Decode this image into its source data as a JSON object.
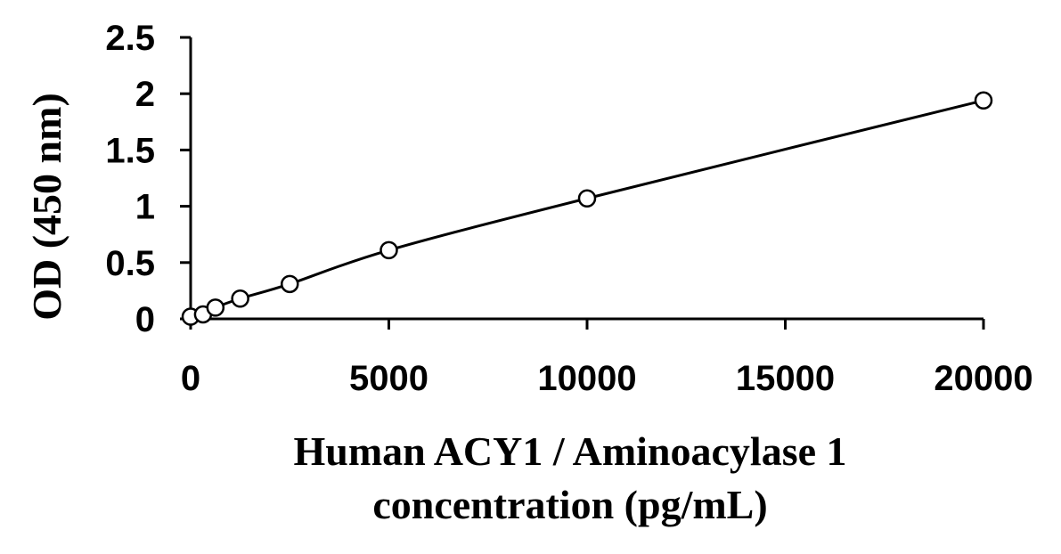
{
  "chart_data": {
    "type": "scatter",
    "title": "",
    "xlabel_lines": [
      "Human ACY1 / Aminoacylase 1",
      "concentration (pg/mL)"
    ],
    "ylabel": "OD (450 nm)",
    "xlim": [
      0,
      20000
    ],
    "ylim": [
      0,
      2.5
    ],
    "x_ticks": [
      0,
      5000,
      10000,
      15000,
      20000
    ],
    "x_tick_labels": [
      "0",
      "5000",
      "10000",
      "15000",
      "20000"
    ],
    "y_ticks": [
      0,
      0.5,
      1,
      1.5,
      2,
      2.5
    ],
    "y_tick_labels": [
      "0",
      "0.5",
      "1",
      "1.5",
      "2",
      "2.5"
    ],
    "grid": false,
    "legend": "none",
    "series": [
      {
        "marker": "open-circle",
        "fit_line": true,
        "x": [
          0,
          312.5,
          625,
          1250,
          2500,
          5000,
          10000,
          20000
        ],
        "y": [
          0.02,
          0.04,
          0.1,
          0.18,
          0.31,
          0.61,
          1.07,
          1.94
        ]
      }
    ]
  }
}
